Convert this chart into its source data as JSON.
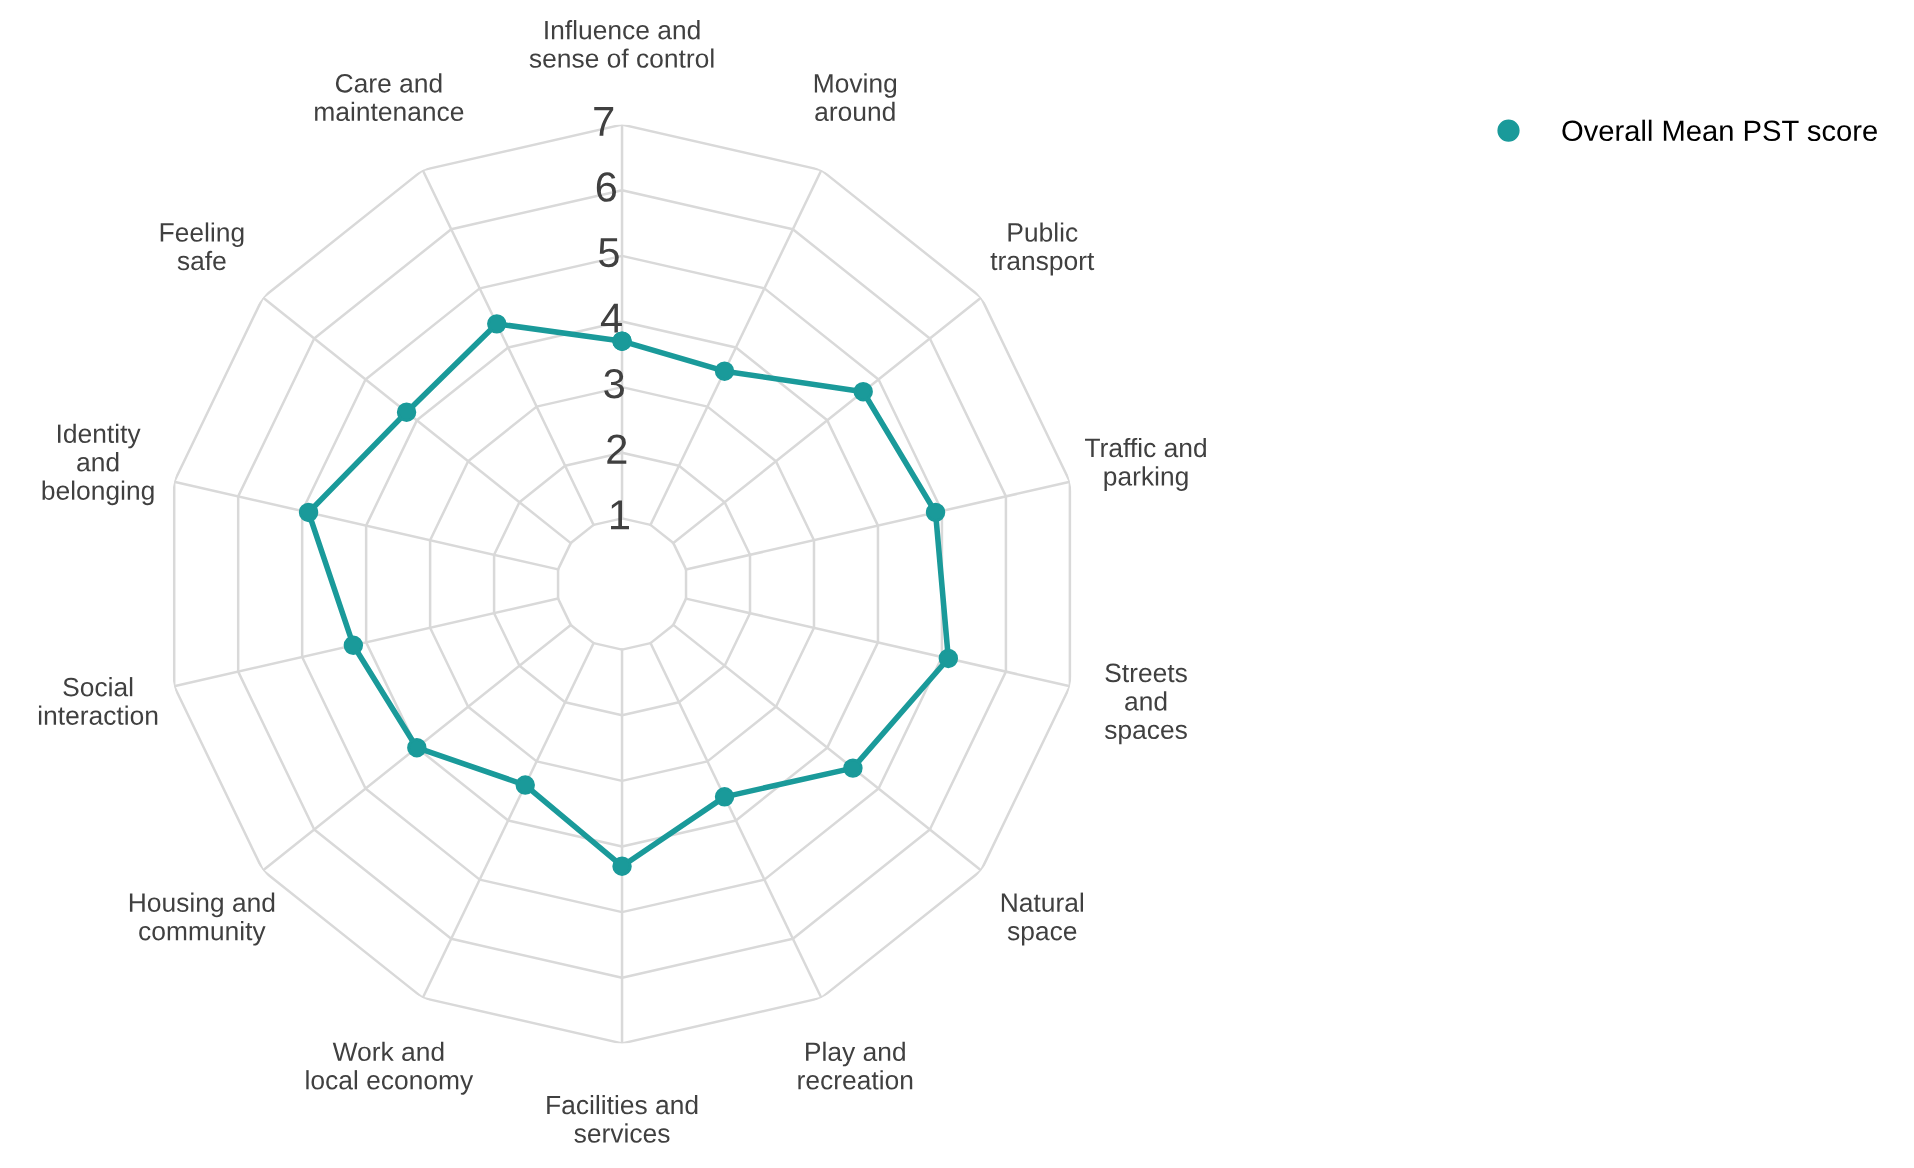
{
  "chart_data": {
    "type": "radar",
    "categories": [
      "Influence and\nsense of control",
      "Moving\naround",
      "Public\ntransport",
      "Traffic and\nparking",
      "Streets\nand\nspaces",
      "Natural\nspace",
      "Play and\nrecreation",
      "Facilities and\nservices",
      "Work and\nlocal economy",
      "Housing and\ncommunity",
      "Social\ninteraction",
      "Identity\nand\nbelonging",
      "Feeling\nsafe",
      "Care and\nmaintenance"
    ],
    "series": [
      {
        "name": "Overall Mean PST score",
        "color": "#1a9a9a",
        "values": [
          3.7,
          3.6,
          4.7,
          4.9,
          5.1,
          4.5,
          3.6,
          4.3,
          3.4,
          4.0,
          4.2,
          4.9,
          4.2,
          4.4
        ]
      }
    ],
    "ylim": [
      0,
      7
    ],
    "yticks": [
      1,
      2,
      3,
      4,
      5,
      6,
      7
    ],
    "grid": true,
    "legend": "top right",
    "marker": "circle"
  }
}
